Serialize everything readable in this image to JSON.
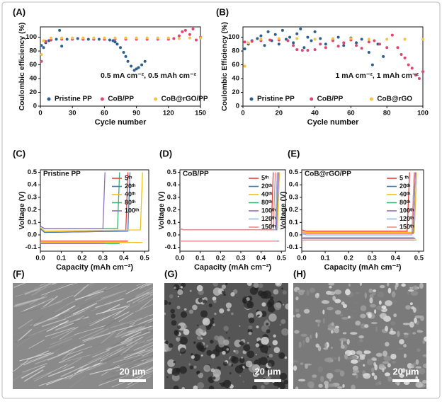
{
  "chart_data": [
    {
      "type": "scatter",
      "label": "(A)",
      "xlabel": "Cycle number",
      "ylabel": "Coulombic efficiency (%)",
      "annotation": "0.5 mA cm⁻², 0.5 mAh cm⁻²",
      "xlim": [
        0,
        150
      ],
      "xticks": [
        0,
        30,
        60,
        90,
        120,
        150
      ],
      "ylim": [
        0,
        115
      ],
      "yticks": [
        0,
        20,
        40,
        60,
        80,
        100
      ],
      "legend": "lower center",
      "series": [
        {
          "name": "Pristine PP",
          "color": "#2b5f8e",
          "x": [
            1,
            3,
            5,
            8,
            10,
            15,
            18,
            20,
            25,
            30,
            35,
            40,
            45,
            50,
            55,
            60,
            65,
            68,
            70,
            72,
            75,
            78,
            80,
            82,
            85,
            88,
            90,
            92,
            95,
            98
          ],
          "values": [
            88,
            85,
            92,
            95,
            96,
            97,
            110,
            87,
            97,
            97,
            98,
            97,
            97,
            97,
            97,
            97,
            96,
            95,
            93,
            90,
            85,
            78,
            72,
            65,
            58,
            52,
            54,
            56,
            60,
            65
          ]
        },
        {
          "name": "CoB/PP",
          "color": "#e2466f",
          "x": [
            1,
            5,
            10,
            20,
            30,
            40,
            50,
            60,
            70,
            80,
            90,
            100,
            110,
            120,
            125,
            130,
            133,
            136,
            140,
            143,
            146,
            150
          ],
          "values": [
            65,
            94,
            96,
            97,
            97,
            97,
            97,
            97,
            97,
            97,
            97,
            97,
            97,
            97,
            98,
            102,
            108,
            110,
            104,
            112,
            96,
            100
          ]
        },
        {
          "name": "CoB@rGO/PP",
          "color": "#f5c242",
          "x": [
            1,
            3,
            10,
            20,
            30,
            40,
            50,
            60,
            70,
            80,
            90,
            100,
            110,
            120,
            130,
            140,
            150
          ],
          "values": [
            75,
            95,
            99,
            99,
            99,
            99,
            99,
            99,
            99,
            99,
            99,
            99,
            99,
            99,
            98,
            99,
            99
          ]
        }
      ]
    },
    {
      "type": "scatter",
      "label": "(B)",
      "xlabel": "Cycle number",
      "ylabel": "Coulombic Efficiency (%)",
      "annotation": "1 mA cm⁻², 1 mAh cm⁻²",
      "xlim": [
        0,
        100
      ],
      "xticks": [
        0,
        20,
        40,
        60,
        80,
        100
      ],
      "ylim": [
        0,
        115
      ],
      "yticks": [
        0,
        20,
        40,
        60,
        80,
        100
      ],
      "legend": "lower center",
      "series": [
        {
          "name": "Pristine PP",
          "color": "#2b5f8e",
          "x": [
            1,
            3,
            5,
            8,
            10,
            12,
            14,
            16,
            18,
            20,
            22,
            24,
            26,
            28,
            30,
            32,
            34,
            36,
            38,
            40,
            43,
            46,
            50,
            53,
            56,
            60,
            63,
            66,
            70,
            72,
            75,
            78
          ],
          "values": [
            83,
            90,
            95,
            98,
            102,
            88,
            108,
            95,
            104,
            90,
            110,
            97,
            100,
            92,
            105,
            112,
            85,
            100,
            95,
            108,
            98,
            90,
            96,
            100,
            88,
            99,
            92,
            97,
            78,
            60,
            90,
            72
          ]
        },
        {
          "name": "CoB/PP",
          "color": "#e2466f",
          "x": [
            1,
            5,
            10,
            15,
            20,
            25,
            28,
            30,
            33,
            36,
            40,
            43,
            46,
            50,
            53,
            56,
            60,
            63,
            66,
            70,
            73,
            76,
            80,
            83,
            86,
            88,
            90,
            92,
            94,
            96,
            98,
            100
          ],
          "values": [
            93,
            94,
            95,
            96,
            96,
            95,
            88,
            82,
            81,
            81,
            82,
            90,
            85,
            95,
            87,
            92,
            96,
            88,
            84,
            93,
            95,
            90,
            85,
            103,
            85,
            75,
            70,
            60,
            55,
            45,
            40,
            50
          ]
        },
        {
          "name": "CoB@rGO",
          "color": "#f5c242",
          "x": [
            1,
            3,
            10,
            20,
            30,
            40,
            50,
            60,
            70,
            80,
            90,
            100
          ],
          "values": [
            58,
            92,
            97,
            98,
            98,
            97,
            98,
            98,
            97,
            97,
            97,
            97
          ]
        }
      ]
    },
    {
      "type": "line",
      "label": "(C)",
      "title": "Pristine PP",
      "xlabel": "Capacity (mAh cm⁻²)",
      "ylabel": "Voltage (V)",
      "xlim": [
        0,
        0.52
      ],
      "xticks": [
        {
          "value": 0,
          "label": "0.0"
        },
        0.1,
        0.2,
        0.3,
        0.4,
        0.5
      ],
      "ylim": [
        -0.13,
        0.52
      ],
      "yticks": [
        -0.1,
        {
          "value": 0,
          "label": "0.0"
        },
        0.1,
        0.2,
        0.3,
        0.4,
        0.5
      ],
      "legend": "upper right",
      "series": [
        {
          "name": "5ᵗʰ",
          "color": "#e8413c",
          "x": [
            0,
            0.42,
            null,
            0,
            0.02,
            0.41,
            0.42
          ],
          "values": [
            -0.05,
            -0.05,
            null,
            0.05,
            0.02,
            0.03,
            0.5
          ]
        },
        {
          "name": "20ᵗʰ",
          "color": "#3a7fc4",
          "x": [
            0,
            0.43,
            null,
            0,
            0.02,
            0.42,
            0.43
          ],
          "values": [
            -0.06,
            -0.06,
            null,
            0.05,
            0.02,
            0.03,
            0.5
          ]
        },
        {
          "name": "40ᵗʰ",
          "color": "#f2c21a",
          "x": [
            0,
            0.49,
            null,
            0,
            0.02,
            0.48,
            0.49
          ],
          "values": [
            -0.06,
            -0.06,
            null,
            0.06,
            0.03,
            0.04,
            0.5
          ]
        },
        {
          "name": "80ᵗʰ",
          "color": "#3cb371",
          "x": [
            0,
            0.38,
            null,
            0,
            0.02,
            0.37,
            0.38
          ],
          "values": [
            -0.07,
            -0.07,
            null,
            0.07,
            0.05,
            0.05,
            0.5
          ]
        },
        {
          "name": "100ᵗʰ",
          "color": "#8e6fc4",
          "x": [
            0,
            0.31,
            null,
            0,
            0.02,
            0.3,
            0.31
          ],
          "values": [
            -0.07,
            -0.07,
            null,
            0.07,
            0.05,
            0.05,
            0.5
          ]
        }
      ]
    },
    {
      "type": "line",
      "label": "(D)",
      "title": "CoB/PP",
      "xlabel": "Capacity (mAh cm⁻²)",
      "ylabel": "Voltage (V)",
      "xlim": [
        0,
        0.52
      ],
      "xticks": [
        {
          "value": 0,
          "label": "0.0"
        },
        0.1,
        0.2,
        0.3,
        0.4,
        0.5
      ],
      "ylim": [
        -0.13,
        0.52
      ],
      "yticks": [
        -0.1,
        {
          "value": 0,
          "label": "0.0"
        },
        0.1,
        0.2,
        0.3,
        0.4,
        0.5
      ],
      "legend": "upper right",
      "series": [
        {
          "name": "5ᵗʰ",
          "color": "#e8413c",
          "x": [
            0,
            0.46,
            null,
            0,
            0.02,
            0.45,
            0.46
          ],
          "values": [
            -0.05,
            -0.05,
            null,
            0.05,
            0.04,
            0.04,
            0.5
          ]
        },
        {
          "name": "20ᵗʰ",
          "color": "#3a7fc4",
          "x": [
            0,
            0.49,
            null,
            0,
            0.02,
            0.48,
            0.49
          ],
          "values": [
            -0.05,
            -0.05,
            null,
            0.05,
            0.04,
            0.04,
            0.5
          ]
        },
        {
          "name": "40ᵗʰ",
          "color": "#f2c21a",
          "x": [
            0,
            0.49,
            null,
            0,
            0.02,
            0.48,
            0.49
          ],
          "values": [
            -0.05,
            -0.05,
            null,
            0.05,
            0.04,
            0.04,
            0.5
          ]
        },
        {
          "name": "80ᵗʰ",
          "color": "#3cb371",
          "x": [
            0,
            0.48,
            null,
            0,
            0.02,
            0.47,
            0.48
          ],
          "values": [
            -0.05,
            -0.05,
            null,
            0.05,
            0.04,
            0.04,
            0.5
          ]
        },
        {
          "name": "100ᵗʰ",
          "color": "#8e6fc4",
          "x": [
            0,
            0.485,
            null,
            0,
            0.02,
            0.475,
            0.485
          ],
          "values": [
            -0.05,
            -0.05,
            null,
            0.05,
            0.04,
            0.04,
            0.5
          ]
        },
        {
          "name": "120ᵗʰ",
          "color": "#8fb8e0",
          "x": [
            0,
            0.48,
            null,
            0,
            0.02,
            0.47,
            0.48
          ],
          "values": [
            -0.05,
            -0.05,
            null,
            0.05,
            0.04,
            0.04,
            0.5
          ]
        },
        {
          "name": "150ᵗʰ",
          "color": "#f08a8a",
          "x": [
            0,
            0.47,
            null,
            0,
            0.02,
            0.46,
            0.47
          ],
          "values": [
            -0.05,
            -0.05,
            null,
            0.05,
            0.04,
            0.04,
            0.5
          ]
        }
      ]
    },
    {
      "type": "line",
      "label": "(E)",
      "title": "CoB@rGO/PP",
      "xlabel": "Capacity (mAh cm⁻²)",
      "ylabel": "Voltage (V)",
      "xlim": [
        0,
        0.52
      ],
      "xticks": [
        {
          "value": 0,
          "label": "0.0"
        },
        0.1,
        0.2,
        0.3,
        0.4,
        0.5
      ],
      "ylim": [
        -0.13,
        0.52
      ],
      "yticks": [
        -0.1,
        {
          "value": 0,
          "label": "0.0"
        },
        0.1,
        0.2,
        0.3,
        0.4,
        0.5
      ],
      "legend": "upper right",
      "series": [
        {
          "name": "5 ᵗʰ",
          "color": "#e8413c",
          "x": [
            0,
            0.46,
            null,
            0,
            0.02,
            0.45,
            0.46
          ],
          "values": [
            -0.03,
            -0.03,
            null,
            0.04,
            0.03,
            0.03,
            0.5
          ]
        },
        {
          "name": "20ᵗʰ",
          "color": "#3a7fc4",
          "x": [
            0,
            0.49,
            null,
            0,
            0.02,
            0.48,
            0.49
          ],
          "values": [
            -0.04,
            -0.04,
            null,
            0.03,
            0.02,
            0.02,
            0.5
          ]
        },
        {
          "name": "40ᵗʰ",
          "color": "#f2c21a",
          "x": [
            0,
            0.49,
            null,
            0,
            0.02,
            0.48,
            0.49
          ],
          "values": [
            -0.04,
            -0.04,
            null,
            0.03,
            0.02,
            0.02,
            0.5
          ]
        },
        {
          "name": "80ᵗʰ",
          "color": "#3cb371",
          "x": [
            0,
            0.48,
            null,
            0,
            0.02,
            0.47,
            0.48
          ],
          "values": [
            -0.03,
            -0.03,
            null,
            0.02,
            0.01,
            0.01,
            0.5
          ]
        },
        {
          "name": "100ᵗʰ",
          "color": "#8e6fc4",
          "x": [
            0,
            0.485,
            null,
            0,
            0.02,
            0.475,
            0.485
          ],
          "values": [
            -0.03,
            -0.03,
            null,
            0.02,
            0.01,
            0.01,
            0.5
          ]
        },
        {
          "name": "120ᵗʰ",
          "color": "#8fb8e0",
          "x": [
            0,
            0.48,
            null,
            0,
            0.02,
            0.47,
            0.48
          ],
          "values": [
            -0.02,
            -0.02,
            null,
            0.01,
            0.0,
            0.0,
            0.5
          ]
        },
        {
          "name": "150ᵗʰ",
          "color": "#f08a8a",
          "x": [
            0,
            0.48,
            null,
            0,
            0.02,
            0.47,
            0.48
          ],
          "values": [
            -0.04,
            -0.04,
            null,
            0.02,
            0.01,
            0.01,
            0.5
          ]
        }
      ]
    }
  ],
  "images": [
    {
      "label": "(F)",
      "scale_bar": "20 µm"
    },
    {
      "label": "(G)",
      "scale_bar": "20 µm"
    },
    {
      "label": "(H)",
      "scale_bar": "20 µm"
    }
  ]
}
